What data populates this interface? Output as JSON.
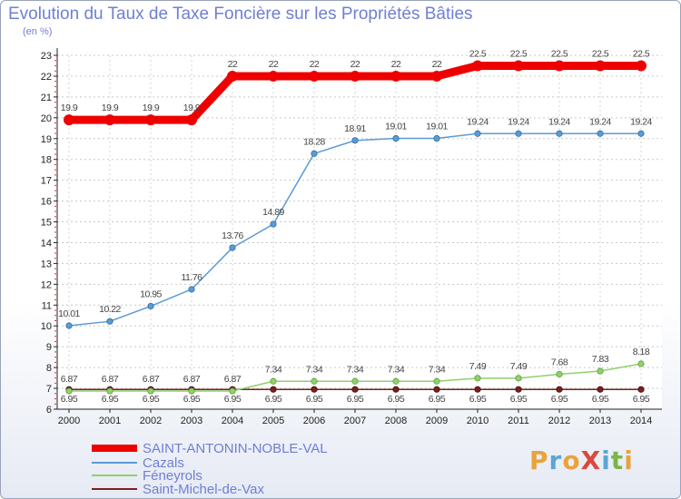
{
  "title": "Evolution du Taux de Taxe Foncière sur les Propriétés Bâties",
  "unit_label": "(en %)",
  "logo": {
    "text": "ProXiti",
    "letters": [
      "P",
      "r",
      "o",
      "X",
      "i",
      "t",
      "i"
    ],
    "colors": [
      "#e8a33c",
      "#5aa7d6",
      "#e8a33c",
      "#d94a3c",
      "#5aa7d6",
      "#7ab648",
      "#e8a33c"
    ]
  },
  "chart_data": {
    "type": "line",
    "x": [
      "2000",
      "2001",
      "2002",
      "2003",
      "2004",
      "2005",
      "2006",
      "2007",
      "2008",
      "2009",
      "2010",
      "2011",
      "2012",
      "2013",
      "2014"
    ],
    "ylim": [
      6,
      23
    ],
    "yticks": [
      6,
      7,
      8,
      9,
      10,
      11,
      12,
      13,
      14,
      15,
      16,
      17,
      18,
      19,
      20,
      21,
      22,
      23
    ],
    "grid": true,
    "series": [
      {
        "name": "SAINT-ANTONIN-NOBLE-VAL",
        "color": "#ee0000",
        "width": 9,
        "values": [
          19.9,
          19.9,
          19.9,
          19.9,
          22,
          22,
          22,
          22,
          22,
          22,
          22.5,
          22.5,
          22.5,
          22.5,
          22.5
        ],
        "labels": [
          "19.9",
          "19.9",
          "19.9",
          "19.9",
          "22",
          "22",
          "22",
          "22",
          "22",
          "22",
          "22.5",
          "22.5",
          "22.5",
          "22.5",
          "22.5"
        ]
      },
      {
        "name": "Cazals",
        "color": "#5b9bd5",
        "width": 1.5,
        "values": [
          10.01,
          10.22,
          10.95,
          11.76,
          13.76,
          14.89,
          18.28,
          18.91,
          19.01,
          19.01,
          19.24,
          19.24,
          19.24,
          19.24,
          19.24
        ],
        "labels": [
          "10.01",
          "10.22",
          "10.95",
          "11.76",
          "13.76",
          "14.89",
          "18.28",
          "18.91",
          "19.01",
          "19.01",
          "19.24",
          "19.24",
          "19.24",
          "19.24",
          "19.24"
        ]
      },
      {
        "name": "Féneyrols",
        "color": "#8fd16a",
        "width": 1.5,
        "values": [
          6.87,
          6.87,
          6.87,
          6.87,
          6.87,
          7.34,
          7.34,
          7.34,
          7.34,
          7.34,
          7.49,
          7.49,
          7.68,
          7.83,
          8.18
        ],
        "labels": [
          "6.87",
          "6.87",
          "6.87",
          "6.87",
          "6.87",
          "7.34",
          "7.34",
          "7.34",
          "7.34",
          "7.34",
          "7.49",
          "7.49",
          "7.68",
          "7.83",
          "8.18"
        ]
      },
      {
        "name": "Saint-Michel-de-Vax",
        "color": "#7a1f1f",
        "width": 1.5,
        "values": [
          6.95,
          6.95,
          6.95,
          6.95,
          6.95,
          6.95,
          6.95,
          6.95,
          6.95,
          6.95,
          6.95,
          6.95,
          6.95,
          6.95,
          6.95
        ],
        "labels": [
          "6.95",
          "6.95",
          "6.95",
          "6.95",
          "6.95",
          "6.95",
          "6.95",
          "6.95",
          "6.95",
          "6.95",
          "6.95",
          "6.95",
          "6.95",
          "6.95",
          "6.95"
        ]
      }
    ]
  }
}
